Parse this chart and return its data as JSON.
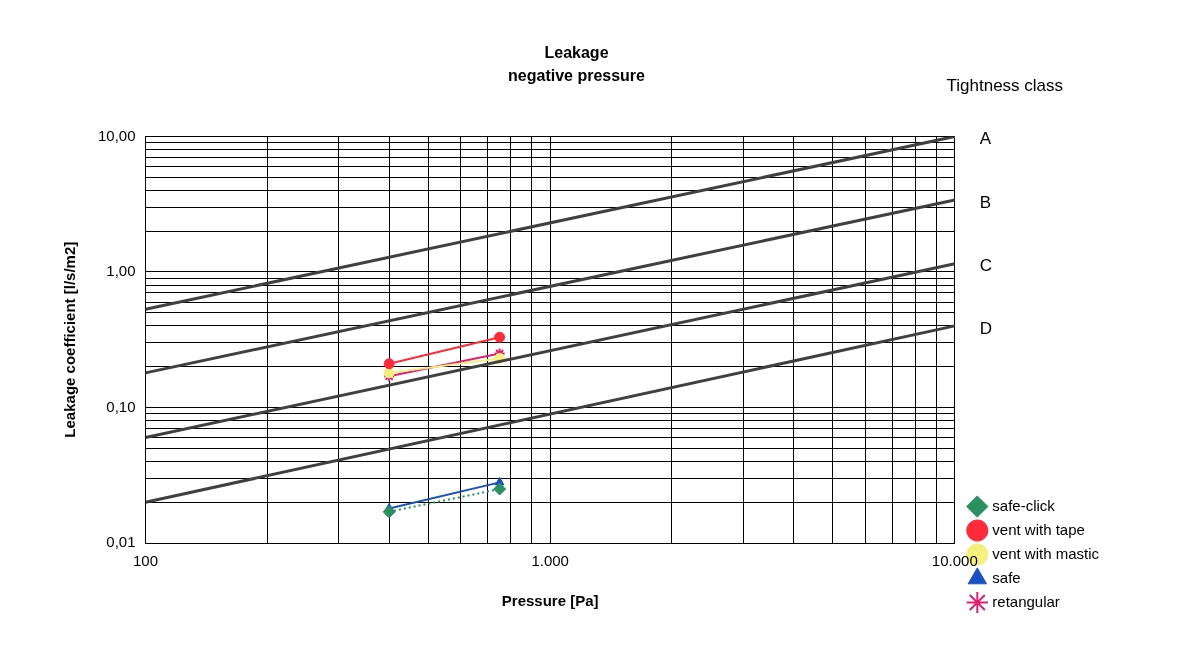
{
  "chart_data": {
    "type": "line",
    "title": "Leakage",
    "subtitle": "negative pressure",
    "xlabel": "Pressure [Pa]",
    "ylabel": "Leakage coefficient [l/s/m2]",
    "annotations": [
      "Tightness class"
    ],
    "log": "xy",
    "grid": true,
    "legend": "right",
    "xlim": [
      100,
      10000
    ],
    "ylim": [
      0.01,
      10
    ],
    "xticks": [
      {
        "value": 100,
        "label": "100"
      },
      {
        "value": 200,
        "label": null
      },
      {
        "value": 300,
        "label": null
      },
      {
        "value": 400,
        "label": null
      },
      {
        "value": 500,
        "label": null
      },
      {
        "value": 600,
        "label": null
      },
      {
        "value": 700,
        "label": null
      },
      {
        "value": 800,
        "label": null
      },
      {
        "value": 900,
        "label": null
      },
      {
        "value": 1000,
        "label": "1.000"
      },
      {
        "value": 2000,
        "label": null
      },
      {
        "value": 3000,
        "label": null
      },
      {
        "value": 4000,
        "label": null
      },
      {
        "value": 5000,
        "label": null
      },
      {
        "value": 6000,
        "label": null
      },
      {
        "value": 7000,
        "label": null
      },
      {
        "value": 8000,
        "label": null
      },
      {
        "value": 9000,
        "label": null
      },
      {
        "value": 10000,
        "label": "10.000"
      }
    ],
    "yticks": [
      {
        "value": 0.01,
        "label": "0,01"
      },
      {
        "value": 0.02,
        "label": null
      },
      {
        "value": 0.03,
        "label": null
      },
      {
        "value": 0.04,
        "label": null
      },
      {
        "value": 0.05,
        "label": null
      },
      {
        "value": 0.06,
        "label": null
      },
      {
        "value": 0.07,
        "label": null
      },
      {
        "value": 0.08,
        "label": null
      },
      {
        "value": 0.09,
        "label": null
      },
      {
        "value": 0.1,
        "label": "0,10"
      },
      {
        "value": 0.2,
        "label": null
      },
      {
        "value": 0.3,
        "label": null
      },
      {
        "value": 0.4,
        "label": null
      },
      {
        "value": 0.5,
        "label": null
      },
      {
        "value": 0.6,
        "label": null
      },
      {
        "value": 0.7,
        "label": null
      },
      {
        "value": 0.8,
        "label": null
      },
      {
        "value": 0.9,
        "label": null
      },
      {
        "value": 1,
        "label": "1,00"
      },
      {
        "value": 2,
        "label": null
      },
      {
        "value": 3,
        "label": null
      },
      {
        "value": 4,
        "label": null
      },
      {
        "value": 5,
        "label": null
      },
      {
        "value": 6,
        "label": null
      },
      {
        "value": 7,
        "label": null
      },
      {
        "value": 8,
        "label": null
      },
      {
        "value": 9,
        "label": null
      },
      {
        "value": 10,
        "label": "10,00"
      }
    ],
    "series": [
      {
        "name": "A",
        "color": "#404040",
        "marker": "none",
        "x": [
          100,
          10000
        ],
        "values": [
          0.53,
          10
        ]
      },
      {
        "name": "B",
        "color": "#404040",
        "marker": "none",
        "x": [
          100,
          10000
        ],
        "values": [
          0.18,
          3.4
        ]
      },
      {
        "name": "C",
        "color": "#404040",
        "marker": "none",
        "x": [
          100,
          10000
        ],
        "values": [
          0.06,
          1.15
        ]
      },
      {
        "name": "D",
        "color": "#404040",
        "marker": "none",
        "x": [
          100,
          10000
        ],
        "values": [
          0.02,
          0.4
        ]
      },
      {
        "name": "vent with tape",
        "color": "#ff2a3a",
        "marker": "circle",
        "x": [
          400,
          750
        ],
        "values": [
          0.21,
          0.33
        ]
      },
      {
        "name": "vent with mastic",
        "color": "#f4f080",
        "marker": "circle",
        "x": [
          400,
          750
        ],
        "values": [
          0.18,
          0.23
        ]
      },
      {
        "name": "safe",
        "color": "#1a50c0",
        "marker": "triangle",
        "x": [
          400,
          750
        ],
        "values": [
          0.018,
          0.028
        ]
      },
      {
        "name": "safe-click",
        "color": "#2a9060",
        "marker": "diamond",
        "line_style": "dotted",
        "x": [
          400,
          750
        ],
        "values": [
          0.017,
          0.025
        ]
      },
      {
        "name": "retangular",
        "color": "#e02070",
        "marker": "cross",
        "x": [
          400,
          750
        ],
        "values": [
          0.17,
          0.25
        ]
      }
    ]
  }
}
